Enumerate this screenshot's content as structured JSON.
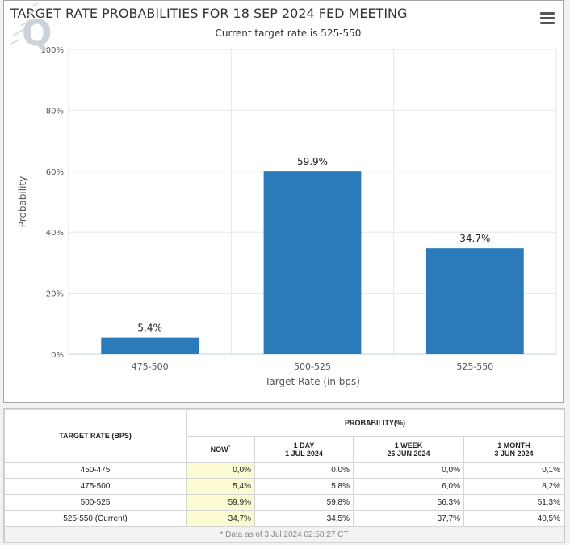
{
  "chart_data": {
    "type": "bar",
    "title": "TARGET RATE PROBABILITIES FOR 18 SEP 2024 FED MEETING",
    "subtitle": "Current target rate is 525-550",
    "xlabel": "Target Rate (in bps)",
    "ylabel": "Probability",
    "categories": [
      "475-500",
      "500-525",
      "525-550"
    ],
    "values": [
      5.4,
      59.9,
      34.7
    ],
    "data_labels": [
      "5.4%",
      "59.9%",
      "34.7%"
    ],
    "yticks": [
      "0%",
      "20%",
      "40%",
      "60%",
      "80%",
      "100%"
    ],
    "ylim": [
      0,
      100
    ],
    "grid": true,
    "bar_color": "#2b7bba"
  },
  "menu_icon": "hamburger-menu-icon",
  "watermark_icon": "q-logo-icon",
  "table": {
    "header_col1": "TARGET RATE (BPS)",
    "header_group": "PROBABILITY(%)",
    "col_now": "NOW",
    "col_now_mark": "*",
    "col_day_a": "1 DAY",
    "col_day_b": "1 JUL 2024",
    "col_week_a": "1 WEEK",
    "col_week_b": "26 JUN 2024",
    "col_month_a": "1 MONTH",
    "col_month_b": "3 JUN 2024",
    "rows": [
      {
        "rate": "450-475",
        "now": "0,0%",
        "day": "0,0%",
        "week": "0,0%",
        "month": "0,1%"
      },
      {
        "rate": "475-500",
        "now": "5,4%",
        "day": "5,8%",
        "week": "6,0%",
        "month": "8,2%"
      },
      {
        "rate": "500-525",
        "now": "59,9%",
        "day": "59,8%",
        "week": "56,3%",
        "month": "51,3%"
      },
      {
        "rate": "525-550 (Current)",
        "now": "34,7%",
        "day": "34,5%",
        "week": "37,7%",
        "month": "40,5%"
      }
    ],
    "footnote": "* Data as of 3 Jul 2024 02:58:27 CT"
  }
}
